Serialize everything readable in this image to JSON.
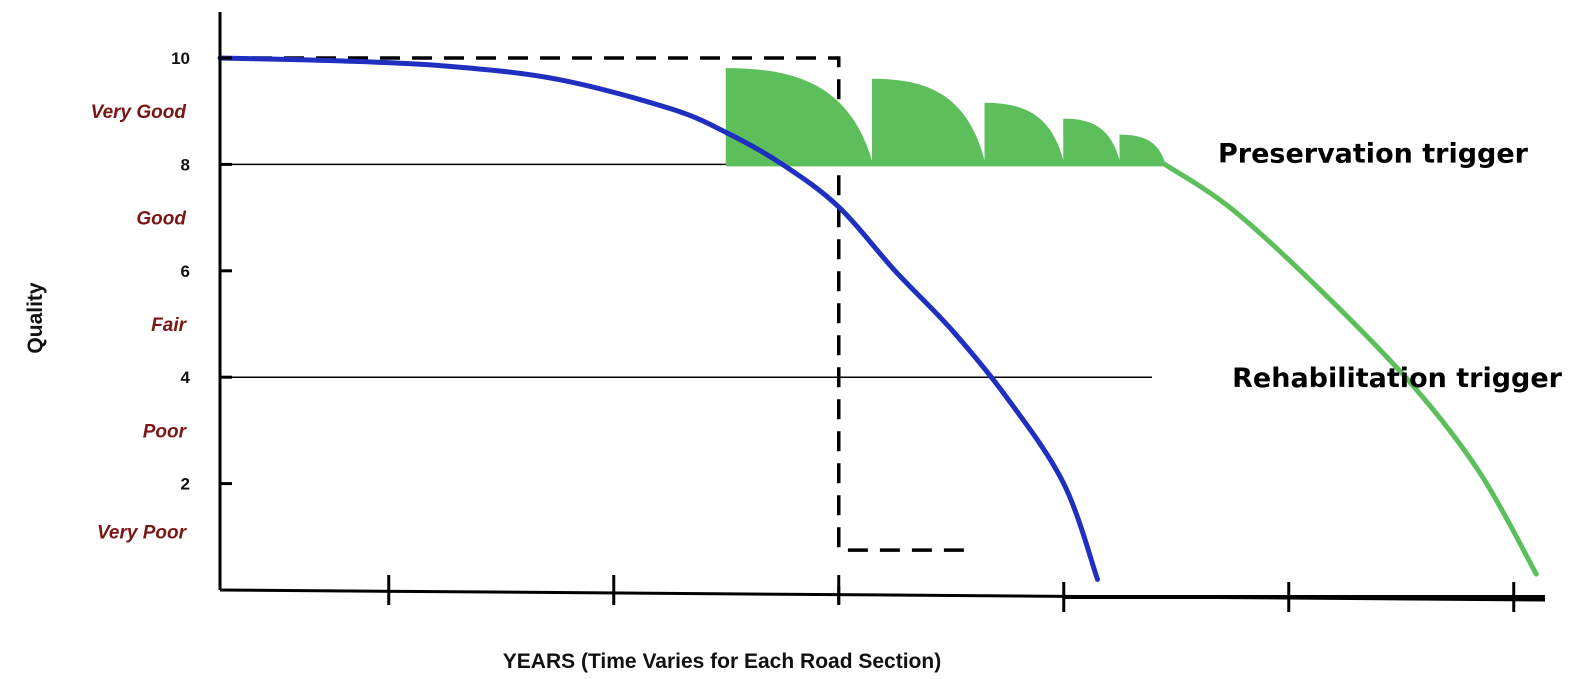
{
  "chart_data": {
    "type": "line",
    "xlabel": "YEARS (Time Varies for Each Road Section)",
    "ylabel": "Quality",
    "ylim": [
      0,
      10
    ],
    "xlim": [
      0,
      6
    ],
    "yticks": [
      2,
      4,
      6,
      8,
      10
    ],
    "xticks": [
      0.75,
      1.75,
      2.75,
      3.75,
      4.75,
      5.75
    ],
    "condition_bands": [
      {
        "label": "Very Good",
        "y": 9
      },
      {
        "label": "Good",
        "y": 7
      },
      {
        "label": "Fair",
        "y": 5
      },
      {
        "label": "Poor",
        "y": 3
      },
      {
        "label": "Very Poor",
        "y": 1.1
      }
    ],
    "triggers": [
      {
        "label": "Preservation trigger",
        "y": 8
      },
      {
        "label": "Rehabilitation trigger",
        "y": 4
      }
    ],
    "series": [
      {
        "color": "#1f2fc0",
        "x": [
          0,
          0.5,
          1,
          1.5,
          2,
          2.25,
          2.5,
          2.75,
          3,
          3.25,
          3.5,
          3.75,
          3.9
        ],
        "values": [
          10,
          9.95,
          9.85,
          9.6,
          9.05,
          8.6,
          8.0,
          7.2,
          6.0,
          4.9,
          3.6,
          2.0,
          0.2
        ]
      },
      {
        "color": "#5cbf5c",
        "x": [
          4.2,
          4.5,
          4.9,
          5.3,
          5.6,
          5.85
        ],
        "values": [
          8.0,
          7.15,
          5.6,
          3.85,
          2.2,
          0.3
        ]
      }
    ],
    "treatments": [
      {
        "x0": 2.25,
        "x1": 2.9,
        "peak": 9.8
      },
      {
        "x0": 2.9,
        "x1": 3.4,
        "peak": 9.6
      },
      {
        "x0": 3.4,
        "x1": 3.75,
        "peak": 9.15
      },
      {
        "x0": 3.75,
        "x1": 4.0,
        "peak": 8.85
      },
      {
        "x0": 4.0,
        "x1": 4.2,
        "peak": 8.55
      }
    ],
    "dashed_box": {
      "x0": 0,
      "x1": 2.75,
      "y_top": 10,
      "y_bottom": 0.75,
      "x_end": 3.35
    },
    "colors": {
      "axis": "#000000",
      "band_label": "#7a1616",
      "deterioration": "#1f2fc0",
      "preservation": "#5cbf5c"
    }
  }
}
